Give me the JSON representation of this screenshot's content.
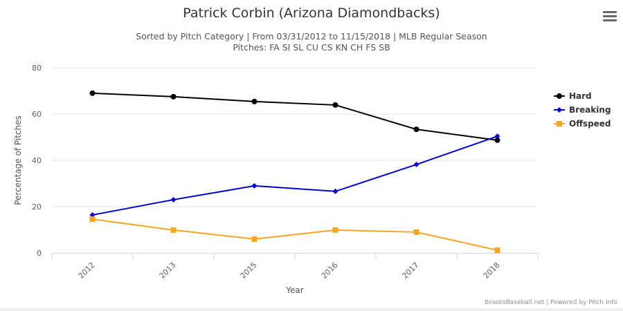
{
  "chart_data": {
    "type": "line",
    "title": "Patrick Corbin (Arizona Diamondbacks)",
    "subtitle_line1": "Sorted by Pitch Category | From 03/31/2012 to 11/15/2018 | MLB Regular Season",
    "subtitle_line2": "Pitches: FA SI SL CU CS KN CH FS SB",
    "xlabel": "Year",
    "ylabel": "Percentage of Pitches",
    "categories": [
      "2012",
      "2013",
      "2015",
      "2016",
      "2017",
      "2018"
    ],
    "ylim": [
      0,
      80
    ],
    "yticks": [
      "0",
      "20",
      "40",
      "60",
      "80"
    ],
    "grid": true,
    "legend_position": "right",
    "series": [
      {
        "name": "Hard",
        "color": "#000000",
        "marker": "circle",
        "values": [
          69.0,
          67.5,
          65.4,
          63.9,
          53.4,
          48.7
        ]
      },
      {
        "name": "Breaking",
        "color": "#0000cc",
        "marker": "diamond",
        "values": [
          16.4,
          23.0,
          29.0,
          26.6,
          38.2,
          50.4
        ]
      },
      {
        "name": "Offspeed",
        "color": "#f5a623",
        "marker": "square",
        "values": [
          14.6,
          9.9,
          6.0,
          9.9,
          9.0,
          1.2
        ]
      }
    ]
  },
  "credits": "BrooksBaseball.net | Powered by Pitch Info",
  "menu_icon": "hamburger-icon"
}
